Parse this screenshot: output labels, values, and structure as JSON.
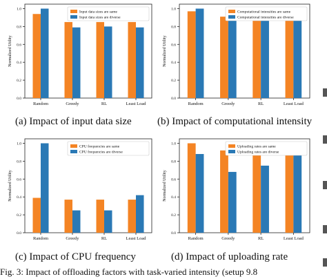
{
  "colors": {
    "same": "#f48424",
    "diverse": "#2a79b5"
  },
  "figure_caption": "Fig. 3: Impact of offloading factors with task-varied intensity (setup 9.8",
  "chart_data": [
    {
      "type": "bar",
      "caption": "(a)  Impact of input data size",
      "categories": [
        "Random",
        "Greedy",
        "RL",
        "Least Load"
      ],
      "ylabel": "Normalized Utility",
      "ylim": [
        0,
        1.05
      ],
      "yticks": [
        0.0,
        0.2,
        0.4,
        0.6,
        0.8,
        1.0
      ],
      "legend": "top-right",
      "series": [
        {
          "name": "Input data sizes are same",
          "values": [
            0.94,
            0.85,
            0.85,
            0.85
          ]
        },
        {
          "name": "Input data sizes are diverse",
          "values": [
            1.0,
            0.79,
            0.8,
            0.79
          ]
        }
      ]
    },
    {
      "type": "bar",
      "caption": "(b)  Impact of computational intensity",
      "categories": [
        "Random",
        "Greedy",
        "RL",
        "Least Load"
      ],
      "ylabel": "Normalized Utility",
      "ylim": [
        0,
        1.05
      ],
      "yticks": [
        0.0,
        0.2,
        0.4,
        0.6,
        0.8,
        1.0
      ],
      "legend": "top-right",
      "series": [
        {
          "name": "Computational intensities are same",
          "values": [
            0.97,
            0.91,
            0.91,
            0.91
          ]
        },
        {
          "name": "Computational intensities are diverse",
          "values": [
            1.0,
            0.89,
            0.92,
            0.93
          ]
        }
      ]
    },
    {
      "type": "bar",
      "caption": "(c)  Impact of CPU frequency",
      "categories": [
        "Random",
        "Greedy",
        "RL",
        "Least Load"
      ],
      "ylabel": "Normalized Utility",
      "ylim": [
        0,
        1.05
      ],
      "yticks": [
        0.0,
        0.2,
        0.4,
        0.6,
        0.8,
        1.0
      ],
      "legend": "top-right",
      "series": [
        {
          "name": "CPU frequencies are same",
          "values": [
            0.39,
            0.37,
            0.37,
            0.37
          ]
        },
        {
          "name": "CPU frequencies are diverse",
          "values": [
            1.0,
            0.25,
            0.25,
            0.42
          ]
        }
      ]
    },
    {
      "type": "bar",
      "caption": "(d)  Impact of uploading rate",
      "categories": [
        "Random",
        "Greedy",
        "RL",
        "Least Load"
      ],
      "ylabel": "Normalized Utility",
      "ylim": [
        0,
        1.05
      ],
      "yticks": [
        0.0,
        0.2,
        0.4,
        0.6,
        0.8,
        1.0
      ],
      "legend": "top-right",
      "series": [
        {
          "name": "Uploading rates are same",
          "values": [
            1.0,
            0.92,
            0.92,
            0.92
          ]
        },
        {
          "name": "Uploading rates are diverse",
          "values": [
            0.88,
            0.68,
            0.75,
            0.92
          ]
        }
      ]
    }
  ]
}
